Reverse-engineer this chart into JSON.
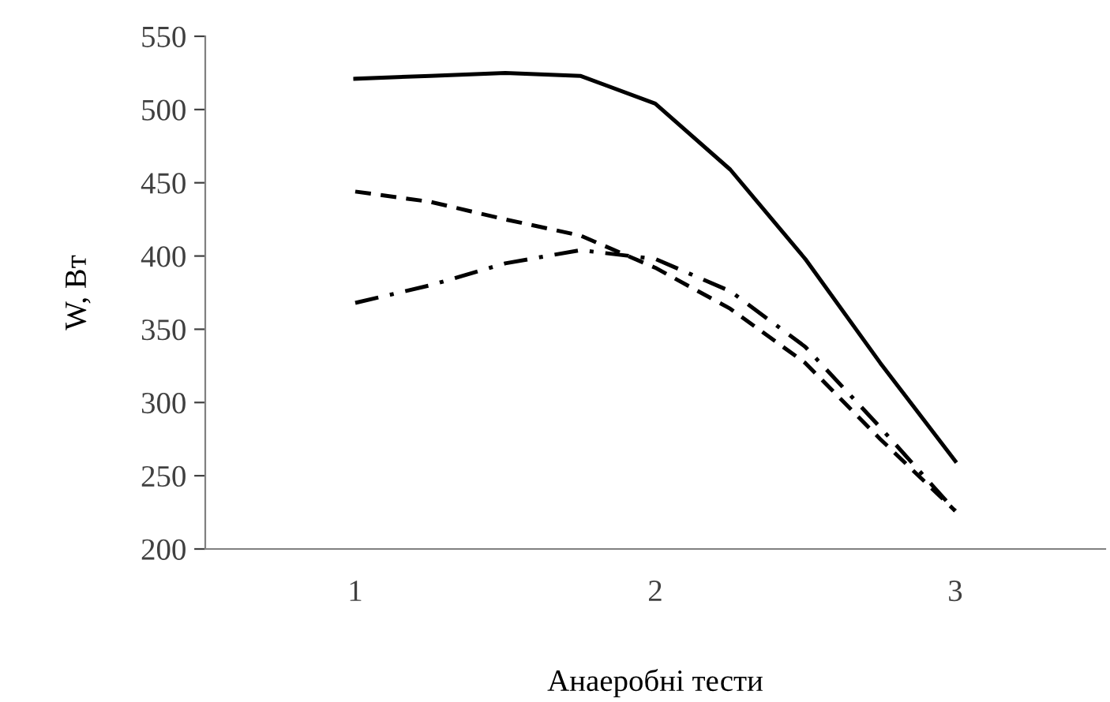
{
  "chart_data": {
    "type": "line",
    "xlabel": "Анаеробні тести",
    "ylabel": "W, Вт",
    "x": [
      1,
      1.25,
      1.5,
      1.75,
      2,
      2.25,
      2.5,
      2.75,
      3
    ],
    "xlim": [
      0.5,
      3.5
    ],
    "xticks": [
      1,
      2,
      3
    ],
    "ylim": [
      200,
      550
    ],
    "yticks": [
      200,
      250,
      300,
      350,
      400,
      450,
      500,
      550
    ],
    "grid": false,
    "legend": false,
    "marker": "none",
    "series": [
      {
        "color": "#000000",
        "line_style": "solid",
        "values": [
          521,
          523,
          525,
          523,
          504,
          459,
          398,
          327,
          260
        ]
      },
      {
        "color": "#000000",
        "line_style": "dashed",
        "values": [
          444,
          437,
          425,
          414,
          392,
          364,
          327,
          275,
          226
        ]
      },
      {
        "color": "#000000",
        "line_style": "dashdot",
        "values": [
          368,
          380,
          395,
          404,
          398,
          376,
          338,
          283,
          226
        ]
      }
    ]
  }
}
